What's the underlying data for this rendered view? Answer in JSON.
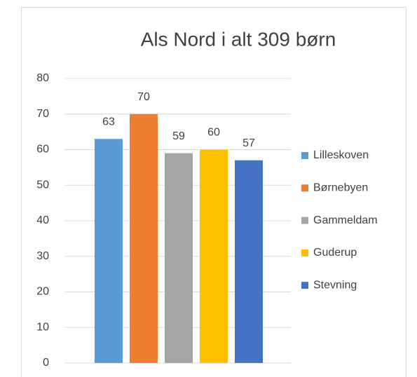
{
  "chart_data": {
    "type": "bar",
    "title": "Als Nord i alt 309 børn",
    "series": [
      {
        "name": "Lilleskoven",
        "color": "#5b9bd5",
        "values": [
          63
        ]
      },
      {
        "name": "Børnebyen",
        "color": "#ed7d31",
        "values": [
          70
        ]
      },
      {
        "name": "Gammeldam",
        "color": "#a5a5a5",
        "values": [
          59
        ]
      },
      {
        "name": "Guderup",
        "color": "#ffc000",
        "values": [
          60
        ]
      },
      {
        "name": "Stevning",
        "color": "#4472c4",
        "values": [
          57
        ]
      }
    ],
    "ylim": [
      0,
      80
    ],
    "yticks": [
      0,
      10,
      20,
      30,
      40,
      50,
      60,
      70,
      80
    ],
    "grid": true,
    "legend": "right",
    "data_labels": true
  }
}
